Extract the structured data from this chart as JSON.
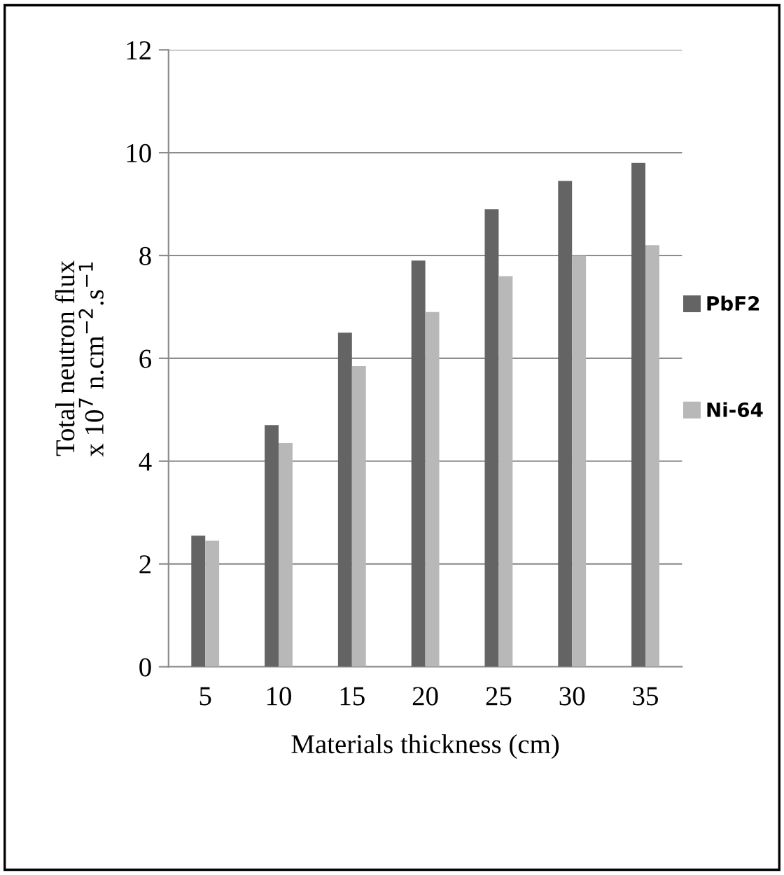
{
  "chart_data": {
    "type": "bar",
    "xlabel": "Materials thickness (cm)",
    "ylabel": "Total neutron flux\nx 10$^{7}$ n.cm$^{−2}$.s$^{−1}$",
    "categories": [
      "5",
      "10",
      "15",
      "20",
      "25",
      "30",
      "35"
    ],
    "series": [
      {
        "name": "PbF2",
        "color": "#646464",
        "values": [
          2.55,
          4.7,
          6.5,
          7.9,
          8.9,
          9.45,
          9.8
        ]
      },
      {
        "name": "Ni-64",
        "color": "#b8b8b8",
        "values": [
          2.45,
          4.35,
          5.85,
          6.9,
          7.6,
          8.0,
          8.2
        ]
      }
    ],
    "ylim": [
      0,
      12
    ],
    "yticks": [
      0,
      2,
      4,
      6,
      8,
      10,
      12
    ],
    "grid": "y",
    "legend": "right"
  }
}
